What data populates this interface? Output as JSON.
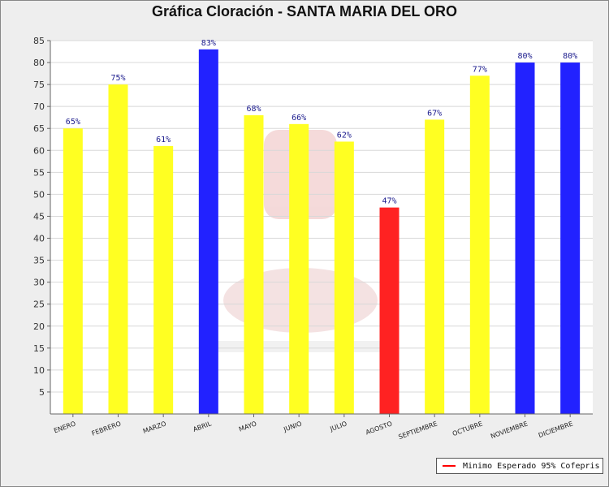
{
  "chart_data": {
    "type": "bar",
    "title": "Gráfica Cloración - SANTA MARIA DEL ORO",
    "xlabel": "",
    "ylabel": "",
    "ylim": [
      0,
      85
    ],
    "yticks": [
      5,
      10,
      15,
      20,
      25,
      30,
      35,
      40,
      45,
      50,
      55,
      60,
      65,
      70,
      75,
      80,
      85
    ],
    "grid": true,
    "categories": [
      "ENERO",
      "FEBRERO",
      "MARZO",
      "ABRIL",
      "MAYO",
      "JUNIO",
      "JULIO",
      "AGOSTO",
      "SEPTIEMBRE",
      "OCTUBRE",
      "NOVIEMBRE",
      "DICIEMBRE"
    ],
    "values": [
      65,
      75,
      61,
      83,
      68,
      66,
      62,
      47,
      67,
      77,
      80,
      80
    ],
    "data_labels": [
      "65%",
      "75%",
      "61%",
      "83%",
      "68%",
      "66%",
      "62%",
      "47%",
      "67%",
      "77%",
      "80%",
      "80%"
    ],
    "bar_colors": [
      "#ffff22",
      "#ffff22",
      "#ffff22",
      "#2222ff",
      "#ffff22",
      "#ffff22",
      "#ffff22",
      "#ff2222",
      "#ffff22",
      "#ffff22",
      "#2222ff",
      "#2222ff"
    ],
    "legend": {
      "position": "bottom-right",
      "entries": [
        {
          "label": "Minimo Esperado 95% Cofepris",
          "color": "#ff0000"
        }
      ]
    }
  }
}
